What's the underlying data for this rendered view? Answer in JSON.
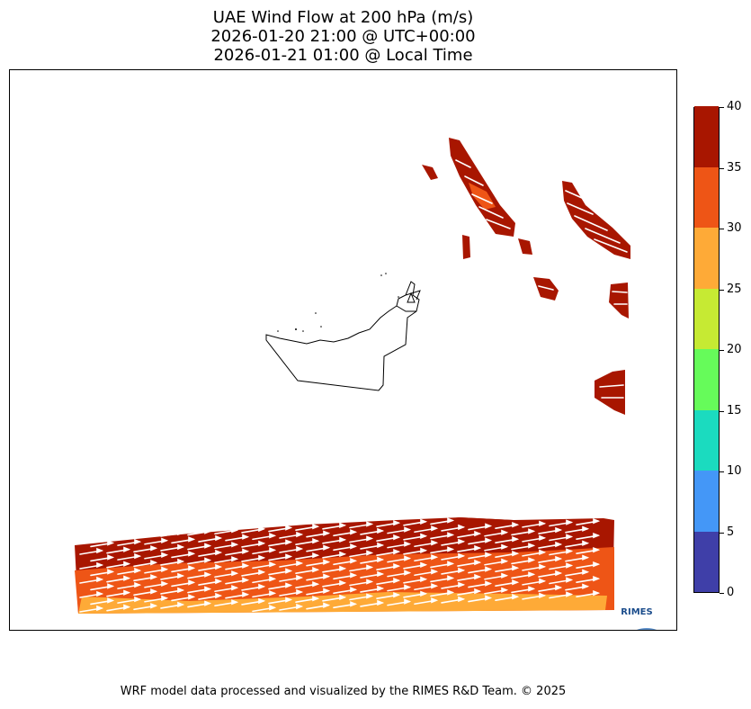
{
  "title": {
    "line1": "UAE Wind Flow at 200 hPa (m/s)",
    "line2": "2026-01-20 21:00 @ UTC+00:00",
    "line3": "2026-01-21 01:00 @ Local Time"
  },
  "colorbar": {
    "ticks": [
      "0",
      "5",
      "10",
      "15",
      "20",
      "25",
      "30",
      "35",
      "40"
    ],
    "colors": [
      "#3f3fa8",
      "#4497f7",
      "#1bdbbf",
      "#66fb5a",
      "#c6ea33",
      "#feaa37",
      "#ee5516",
      "#a81600"
    ]
  },
  "logo": {
    "text": "RIMES",
    "color": "#1c4d8c"
  },
  "footer": "WRF model data processed and visualized by the RIMES R&D Team. © 2025"
}
